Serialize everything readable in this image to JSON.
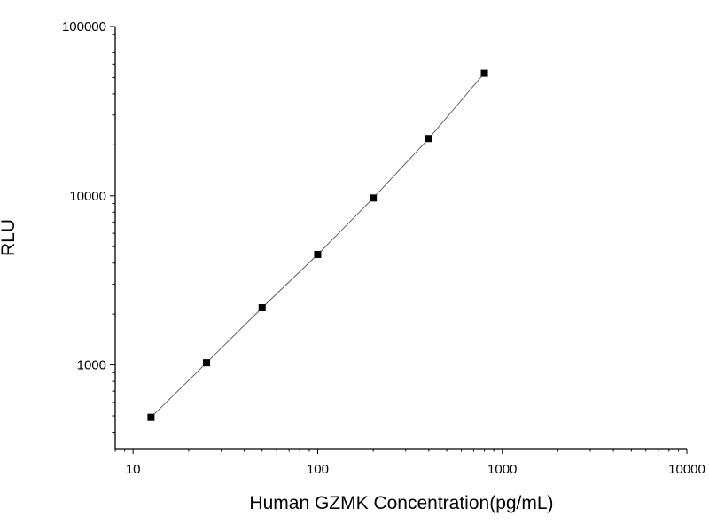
{
  "chart_data": {
    "type": "scatter",
    "x_scale": "log",
    "y_scale": "log",
    "xlabel": "Human GZMK Concentration(pg/mL)",
    "ylabel": "RLU",
    "xlim": [
      8,
      10000
    ],
    "ylim": [
      320,
      100000
    ],
    "x_ticks": [
      10,
      100,
      1000,
      10000
    ],
    "x_tick_labels": [
      "10",
      "100",
      "1000",
      "10000"
    ],
    "y_ticks": [
      1000,
      10000,
      100000
    ],
    "y_tick_labels": [
      "1000",
      "10000",
      "100000"
    ],
    "grid": false,
    "series": [
      {
        "marker": "square",
        "fit_line": true,
        "x": [
          12.5,
          25,
          50,
          100,
          200,
          400,
          800
        ],
        "y": [
          490,
          1030,
          2180,
          4500,
          9700,
          21800,
          53000
        ]
      }
    ],
    "colors": {
      "marker": "#000000",
      "line": "#555555",
      "axis": "#000000"
    }
  }
}
